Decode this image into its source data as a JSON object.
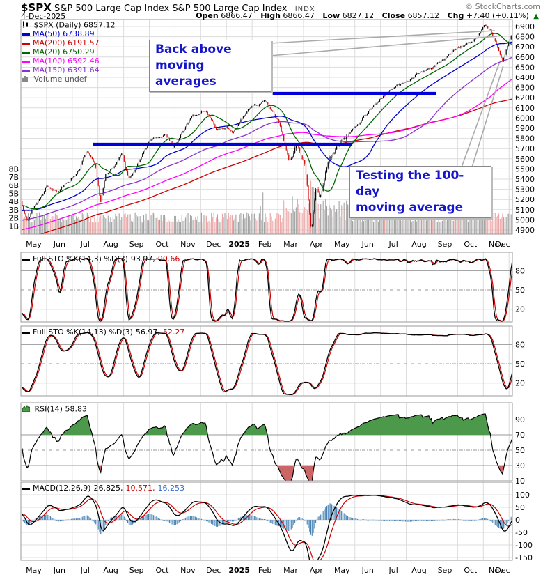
{
  "header": {
    "symbol": "$SPX",
    "name": "S&P 500 Large Cap Index",
    "exchange": "INDX",
    "date": "4-Dec-2025",
    "credit": "© StockCharts.com",
    "open_label": "Open",
    "open": "6866.47",
    "high_label": "High",
    "high": "6866.47",
    "low_label": "Low",
    "low": "6827.12",
    "close_label": "Close",
    "close": "6857.12",
    "chg_label": "Chg",
    "chg": "+7.40 (+0.11%)",
    "chg_arrow": "▲"
  },
  "legend": {
    "main": "$SPX (Daily) 6857.12",
    "items": [
      {
        "label": "MA(50) 6738.89",
        "color": "#0000cc"
      },
      {
        "label": "MA(200) 6191.57",
        "color": "#cc0000"
      },
      {
        "label": "MA(20) 6750.29",
        "color": "#006600"
      },
      {
        "label": "MA(100) 6592.46",
        "color": "#ff00ff"
      },
      {
        "label": "MA(150) 6391.64",
        "color": "#8833cc"
      }
    ],
    "volume": "Volume undef"
  },
  "annotations": {
    "box1_line1": "Back above",
    "box1_line2": "moving averages",
    "box2_line1": "Testing the 100-day",
    "box2_line2": "moving average"
  },
  "panel_labels": {
    "sto_fast": {
      "name": "Full STO %K(14,3) %D(3)",
      "value_black": "93.97,",
      "value_red": "90.66"
    },
    "sto_slow": {
      "name": "Full STO %K(14,13) %D(3)",
      "value_black": "56.97,",
      "value_red": "52.27"
    },
    "rsi": {
      "name": "RSI(14) 58.83"
    },
    "macd": {
      "name": "MACD(12,26,9)",
      "value_black": "26.825,",
      "value_red": "10.571,",
      "value_blue": "16.253"
    }
  },
  "chart_data": {
    "type": "candlestick",
    "symbol": "$SPX",
    "timeframe": "Daily",
    "date": "4-Dec-2025",
    "ohlc": {
      "open": 6866.47,
      "high": 6866.47,
      "low": 6827.12,
      "close": 6857.12,
      "chg": 7.4,
      "chg_pct": 0.11
    },
    "moving_averages": {
      "MA20": 6750.29,
      "MA50": 6738.89,
      "MA100": 6592.46,
      "MA150": 6391.64,
      "MA200": 6191.57
    },
    "x_months": [
      "May",
      "Jun",
      "Jul",
      "Aug",
      "Sep",
      "Oct",
      "Nov",
      "Dec",
      "2025",
      "Feb",
      "Mar",
      "Apr",
      "May",
      "Jun",
      "Jul",
      "Aug",
      "Sep",
      "Oct",
      "Nov",
      "Dec"
    ],
    "bold_month_index": 8,
    "months_total": 19.13,
    "price_axis": {
      "min": 4900,
      "max": 6900,
      "step": 100
    },
    "volume_axis_billions": [
      8,
      7,
      6,
      5,
      4,
      3,
      2,
      1
    ],
    "price_keypoints": [
      [
        0,
        5180
      ],
      [
        0.25,
        5000
      ],
      [
        0.5,
        5120
      ],
      [
        1,
        5330
      ],
      [
        1.4,
        5270
      ],
      [
        2.3,
        5500
      ],
      [
        2.55,
        5670
      ],
      [
        2.9,
        5520
      ],
      [
        3.1,
        5150
      ],
      [
        3.3,
        5420
      ],
      [
        3.95,
        5650
      ],
      [
        4.2,
        5410
      ],
      [
        5,
        5770
      ],
      [
        5.6,
        5860
      ],
      [
        5.95,
        5710
      ],
      [
        6.6,
        6010
      ],
      [
        7.2,
        6100
      ],
      [
        7.6,
        5880
      ],
      [
        8,
        5910
      ],
      [
        8.2,
        5840
      ],
      [
        9,
        6120
      ],
      [
        9.6,
        6150
      ],
      [
        10,
        5980
      ],
      [
        10.45,
        5630
      ],
      [
        10.7,
        5780
      ],
      [
        11.05,
        5580
      ],
      [
        11.3,
        4870
      ],
      [
        11.5,
        5320
      ],
      [
        11.65,
        5180
      ],
      [
        12,
        5580
      ],
      [
        12.3,
        5700
      ],
      [
        13,
        5920
      ],
      [
        13.5,
        6050
      ],
      [
        14,
        6200
      ],
      [
        14.6,
        6300
      ],
      [
        15,
        6350
      ],
      [
        15.5,
        6460
      ],
      [
        16,
        6480
      ],
      [
        16.6,
        6600
      ],
      [
        17,
        6700
      ],
      [
        17.6,
        6760
      ],
      [
        18.05,
        6900
      ],
      [
        18.3,
        6850
      ],
      [
        18.75,
        6560
      ],
      [
        19.13,
        6860
      ]
    ],
    "support_lines": [
      {
        "price": 5740,
        "t_start": 2.8,
        "t_end": 12.9,
        "color": "#0000dd"
      },
      {
        "price": 6240,
        "t_start": 9.8,
        "t_end": 16.15,
        "color": "#0000dd"
      }
    ],
    "indicators": {
      "sto_fast": {
        "k_period": 14,
        "k_smooth": 3,
        "d_period": 3,
        "last_k": 93.97,
        "last_d": 90.66,
        "ticks": [
          80,
          50,
          20
        ]
      },
      "sto_slow": {
        "k_period": 14,
        "k_smooth": 13,
        "d_period": 3,
        "last_k": 56.97,
        "last_d": 52.27,
        "ticks": [
          80,
          50,
          20
        ]
      },
      "rsi": {
        "period": 14,
        "last": 58.83,
        "ticks": [
          90,
          70,
          50,
          30,
          10
        ],
        "overbought": 70,
        "oversold": 30
      },
      "macd": {
        "fast": 12,
        "slow": 26,
        "signal": 9,
        "last_macd": 26.825,
        "last_signal": 10.571,
        "last_hist": 16.253,
        "ticks": [
          100,
          50,
          0,
          -50,
          -100,
          -150
        ]
      }
    },
    "colors": {
      "candle_up": "#000000",
      "candle_down": "#d40000",
      "vol_up": "#a3a3a3",
      "vol_down": "#eba6a6",
      "grid": "#dcdcdc",
      "grid_strong": "#999999",
      "border": "#999999",
      "sto_k": "#000000",
      "sto_d": "#cc0000",
      "rsi_line": "#000000",
      "rsi_fill_hi": "#4c994c",
      "rsi_fill_lo": "#cc6666",
      "macd_line": "#000000",
      "macd_signal": "#cc0000",
      "macd_hist": "#4682b4",
      "pointer": "#aaaaaa"
    }
  }
}
